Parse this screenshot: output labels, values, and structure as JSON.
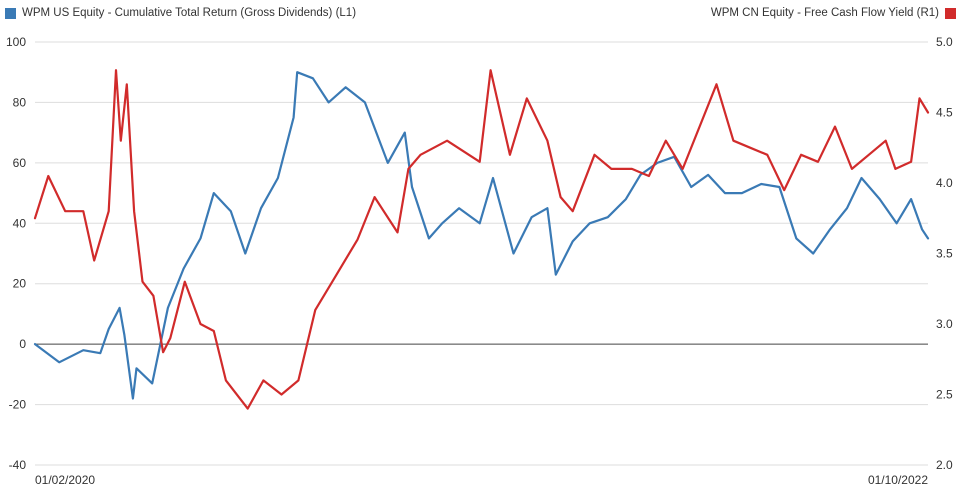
{
  "chart_data": {
    "type": "line",
    "legend_placement": "top",
    "x_start_label": "01/02/2020",
    "x_end_label": "01/10/2022",
    "x_range": [
      "2020-01-02",
      "2022-01-10"
    ],
    "y_left": {
      "ticks": [
        "100",
        "80",
        "60",
        "40",
        "20",
        "0",
        "-20",
        "-40"
      ],
      "range": [
        -40,
        100
      ]
    },
    "y_right": {
      "ticks": [
        "5.0",
        "4.5",
        "4.0",
        "3.5",
        "3.0",
        "2.5",
        "2.0"
      ],
      "range": [
        2.0,
        5.0
      ]
    },
    "grid": true,
    "zero_line": true,
    "series": [
      {
        "name": "WPM US Equity - Cumulative Total Return (Gross Dividends) (L1)",
        "axis": "left",
        "color": "#3a7ab5",
        "x": [
          "2020-01-02",
          "2020-01-22",
          "2020-02-11",
          "2020-02-25",
          "2020-03-03",
          "2020-03-12",
          "2020-03-16",
          "2020-03-23",
          "2020-03-26",
          "2020-04-08",
          "2020-04-21",
          "2020-05-04",
          "2020-05-18",
          "2020-05-29",
          "2020-06-12",
          "2020-06-24",
          "2020-07-07",
          "2020-07-21",
          "2020-08-03",
          "2020-08-06",
          "2020-08-19",
          "2020-09-01",
          "2020-09-15",
          "2020-10-01",
          "2020-10-20",
          "2020-11-03",
          "2020-11-09",
          "2020-11-23",
          "2020-12-04",
          "2020-12-18",
          "2021-01-04",
          "2021-01-15",
          "2021-02-01",
          "2021-02-16",
          "2021-03-01",
          "2021-03-08",
          "2021-03-22",
          "2021-04-05",
          "2021-04-20",
          "2021-05-05",
          "2021-05-17",
          "2021-05-31",
          "2021-06-14",
          "2021-06-28",
          "2021-07-12",
          "2021-07-26",
          "2021-08-09",
          "2021-08-25",
          "2021-09-09",
          "2021-09-23",
          "2021-10-07",
          "2021-10-21",
          "2021-11-04",
          "2021-11-16",
          "2021-12-01",
          "2021-12-15",
          "2021-12-27",
          "2022-01-05",
          "2022-01-10"
        ],
        "y": [
          0,
          -6,
          -2,
          -3,
          5,
          12,
          3,
          -18,
          -8,
          -13,
          12,
          25,
          35,
          50,
          44,
          30,
          45,
          55,
          75,
          90,
          88,
          80,
          85,
          80,
          60,
          70,
          52,
          35,
          40,
          45,
          40,
          55,
          30,
          42,
          45,
          23,
          34,
          40,
          42,
          48,
          56,
          60,
          62,
          52,
          56,
          50,
          50,
          53,
          52,
          35,
          30,
          38,
          45,
          55,
          48,
          40,
          48,
          38,
          35
        ]
      },
      {
        "name": "WPM CN Equity - Free Cash Flow Yield (R1)",
        "axis": "right",
        "color": "#d12b2b",
        "x": [
          "2020-01-02",
          "2020-01-13",
          "2020-01-27",
          "2020-02-11",
          "2020-02-20",
          "2020-03-03",
          "2020-03-09",
          "2020-03-13",
          "2020-03-18",
          "2020-03-24",
          "2020-03-31",
          "2020-04-09",
          "2020-04-17",
          "2020-04-23",
          "2020-05-05",
          "2020-05-18",
          "2020-05-29",
          "2020-06-08",
          "2020-06-26",
          "2020-07-09",
          "2020-07-24",
          "2020-08-07",
          "2020-08-21",
          "2020-09-04",
          "2020-09-25",
          "2020-10-09",
          "2020-10-28",
          "2020-11-06",
          "2020-11-16",
          "2020-12-08",
          "2021-01-04",
          "2021-01-13",
          "2021-01-29",
          "2021-02-12",
          "2021-03-01",
          "2021-03-12",
          "2021-03-22",
          "2021-04-09",
          "2021-04-23",
          "2021-05-10",
          "2021-05-24",
          "2021-06-07",
          "2021-06-21",
          "2021-07-05",
          "2021-07-19",
          "2021-08-02",
          "2021-08-16",
          "2021-08-30",
          "2021-09-13",
          "2021-09-27",
          "2021-10-11",
          "2021-10-25",
          "2021-11-08",
          "2021-11-22",
          "2021-12-06",
          "2021-12-14",
          "2021-12-27",
          "2022-01-03",
          "2022-01-10"
        ],
        "y": [
          3.75,
          4.05,
          3.8,
          3.8,
          3.45,
          3.8,
          4.8,
          4.3,
          4.7,
          3.8,
          3.3,
          3.2,
          2.8,
          2.9,
          3.3,
          3.0,
          2.95,
          2.6,
          2.4,
          2.6,
          2.5,
          2.6,
          3.1,
          3.3,
          3.6,
          3.9,
          3.65,
          4.1,
          4.2,
          4.3,
          4.15,
          4.8,
          4.2,
          4.6,
          4.3,
          3.9,
          3.8,
          4.2,
          4.1,
          4.1,
          4.05,
          4.3,
          4.1,
          4.4,
          4.7,
          4.3,
          4.25,
          4.2,
          3.95,
          4.2,
          4.15,
          4.4,
          4.1,
          4.2,
          4.3,
          4.1,
          4.15,
          4.6,
          4.5
        ]
      }
    ]
  }
}
